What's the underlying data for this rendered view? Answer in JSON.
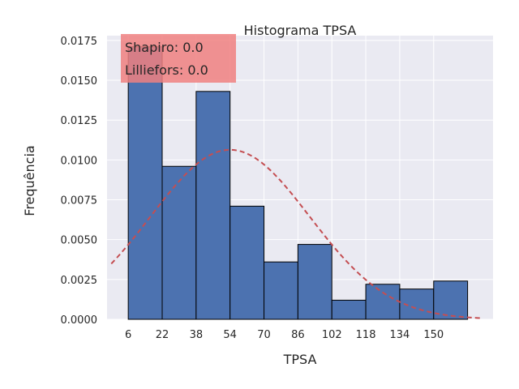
{
  "chart_data": {
    "type": "bar",
    "title": "Histograma TPSA",
    "xlabel": "TPSA",
    "ylabel": "Frequência",
    "x_range": [
      -4,
      178
    ],
    "ylim": [
      0,
      0.0178
    ],
    "x_ticks": [
      6,
      22,
      38,
      54,
      70,
      86,
      102,
      118,
      134,
      150
    ],
    "y_ticks": [
      "0.0000",
      "0.0025",
      "0.0050",
      "0.0075",
      "0.0100",
      "0.0125",
      "0.0150",
      "0.0175"
    ],
    "bins": [
      {
        "start": 6,
        "end": 22,
        "value": 0.0171
      },
      {
        "start": 22,
        "end": 38,
        "value": 0.0096
      },
      {
        "start": 38,
        "end": 54,
        "value": 0.0143
      },
      {
        "start": 54,
        "end": 70,
        "value": 0.0071
      },
      {
        "start": 70,
        "end": 86,
        "value": 0.0036
      },
      {
        "start": 86,
        "end": 102,
        "value": 0.0047
      },
      {
        "start": 102,
        "end": 118,
        "value": 0.0012
      },
      {
        "start": 118,
        "end": 134,
        "value": 0.0022
      },
      {
        "start": 134,
        "end": 150,
        "value": 0.0019
      },
      {
        "start": 150,
        "end": 166,
        "value": 0.0024
      }
    ],
    "normal_fit": {
      "mean": 54,
      "std": 37.5,
      "x_start": -2,
      "x_end": 172
    },
    "grid": true,
    "colors": {
      "bars": "#4c72b0",
      "bar_edge": "#000000",
      "curve": "#c44e52",
      "background": "#eaeaf2",
      "annotation_box": "#f08080"
    }
  },
  "annotation": {
    "line1": "Shapiro: 0.0",
    "line2": "Lilliefors: 0.0"
  }
}
